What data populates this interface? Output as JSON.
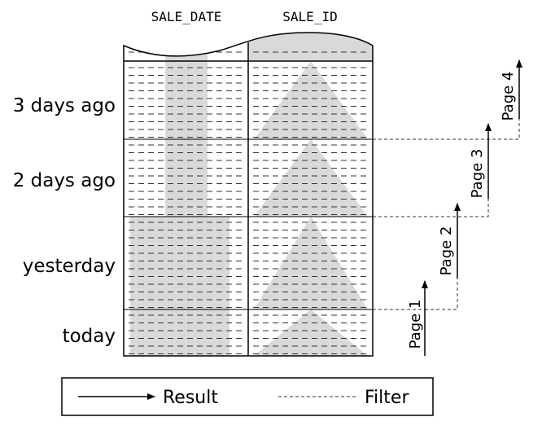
{
  "columns": [
    {
      "header": "SALE_DATE"
    },
    {
      "header": "SALE_ID"
    }
  ],
  "row_groups": [
    {
      "label": "3 days ago"
    },
    {
      "label": "2 days ago"
    },
    {
      "label": "yesterday"
    },
    {
      "label": "today"
    }
  ],
  "pages": [
    {
      "label": "Page 1"
    },
    {
      "label": "Page 2"
    },
    {
      "label": "Page 3"
    },
    {
      "label": "Page 4"
    }
  ],
  "legend": {
    "result_label": "Result",
    "filter_label": "Filter"
  },
  "colors": {
    "line": "#000000",
    "dash": "#333333",
    "shade": "#d9d9d9"
  }
}
